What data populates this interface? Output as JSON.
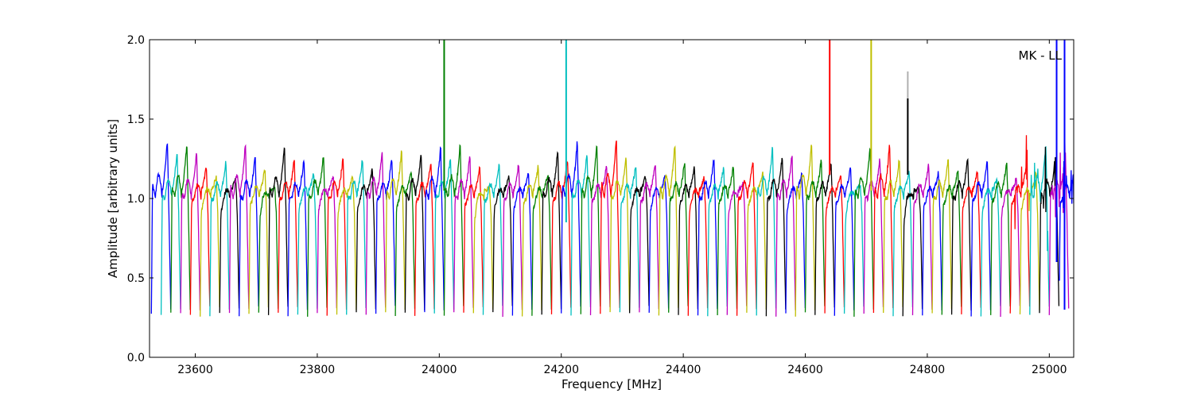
{
  "chart_data": {
    "type": "line",
    "xlabel": "Frequency [MHz]",
    "ylabel": "Amplitude [arbitrary units]",
    "annotation": "MK - LL",
    "xlim": [
      23525,
      25040
    ],
    "ylim": [
      0.0,
      2.0
    ],
    "xticks": [
      23600,
      23800,
      24000,
      24200,
      24400,
      24600,
      24800,
      25000
    ],
    "yticks": [
      0.0,
      0.5,
      1.0,
      1.5,
      2.0
    ],
    "ytick_labels": [
      "0.0",
      "0.5",
      "1.0",
      "1.5",
      "2.0"
    ],
    "grid": false,
    "colors": [
      "#0000ff",
      "#008000",
      "#ff0000",
      "#00bfbf",
      "#bf00bf",
      "#bfbf00",
      "#000000"
    ],
    "channel_width_mhz": 32,
    "channel_peaks": [
      1.37,
      1.35,
      1.21,
      1.24,
      1.35,
      1.19,
      1.33,
      1.25,
      1.28,
      1.26,
      1.26,
      1.31,
      1.31,
      1.29,
      1.33,
      1.35,
      1.2,
      1.22,
      1.23,
      1.21,
      1.31,
      1.37,
      1.34,
      1.38,
      1.21,
      1.23,
      1.35,
      1.2,
      1.26,
      1.21,
      1.25,
      1.33,
      1.28,
      1.36,
      1.24,
      1.2,
      1.33,
      1.35,
      1.18,
      1.22,
      1.26,
      1.26,
      1.24,
      1.23,
      1.21,
      1.34,
      1.3
    ],
    "spikes": [
      {
        "x": 24008,
        "top": 2.0,
        "base": 1.05,
        "color": "#008000"
      },
      {
        "x": 24208,
        "top": 2.0,
        "base": 0.85,
        "color": "#00bfbf"
      },
      {
        "x": 24640,
        "top": 2.0,
        "base": 1.15,
        "color": "#ff0000"
      },
      {
        "x": 24708,
        "top": 2.0,
        "base": 1.05,
        "color": "#bfbf00"
      },
      {
        "x": 24768,
        "top": 1.8,
        "base": 1.15,
        "color": "#b0b0b0"
      },
      {
        "x": 24768,
        "top": 1.63,
        "base": 1.15,
        "color": "#000000"
      },
      {
        "x": 25012,
        "top": 2.0,
        "base": 0.6,
        "color": "#0000ff"
      },
      {
        "x": 25025,
        "top": 2.0,
        "base": 0.3,
        "color": "#0000ff"
      }
    ]
  }
}
